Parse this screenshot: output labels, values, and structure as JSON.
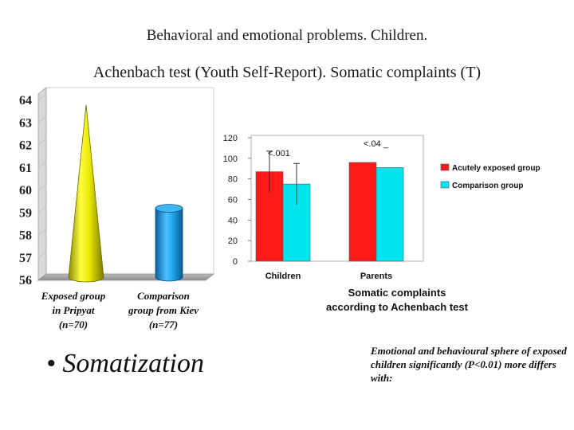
{
  "header": {
    "title": "Behavioral and emotional problems. Children.",
    "subtitle": "Achenbach test (Youth Self-Report). Somatic complaints (T)"
  },
  "chart_data": [
    {
      "type": "bar",
      "style": "3d-cone-and-cylinder",
      "categories": [
        "Exposed group in Pripyat (n=70)",
        "Comparison group from Kiev (n=77)"
      ],
      "category_lines": [
        [
          "Exposed group",
          "in Pripyat",
          "(n=70)"
        ],
        [
          "Comparison",
          "group from Kiev",
          "(n=77)"
        ]
      ],
      "values": [
        63.8,
        59.2
      ],
      "ylim": [
        56,
        64
      ],
      "yticks": [
        "64",
        "63",
        "62",
        "61",
        "60",
        "59",
        "58",
        "57",
        "56"
      ],
      "colors": [
        "#f2f200",
        "#1ea4e8"
      ]
    },
    {
      "type": "bar",
      "title_lines": [
        "Somatic complaints",
        "according to Achenbach test"
      ],
      "categories": [
        "Children",
        "Parents"
      ],
      "series": [
        {
          "name": "Acutely exposed group",
          "color": "#ff1a1a",
          "values": [
            87,
            96
          ],
          "err": [
            20,
            0
          ]
        },
        {
          "name": "Comparison group",
          "color": "#00e5ee",
          "values": [
            75,
            91
          ],
          "err": [
            20,
            0
          ]
        }
      ],
      "ylim": [
        0,
        120
      ],
      "yticks": [
        "120",
        "100",
        "80",
        "60",
        "40",
        "20",
        "0"
      ],
      "annotations": [
        "<.001",
        "<.04 _"
      ],
      "legend": "right"
    }
  ],
  "bullet": "Somatization",
  "note": "Emotional and behavioural sphere of exposed children significantly (P<0.01) more differs with:"
}
